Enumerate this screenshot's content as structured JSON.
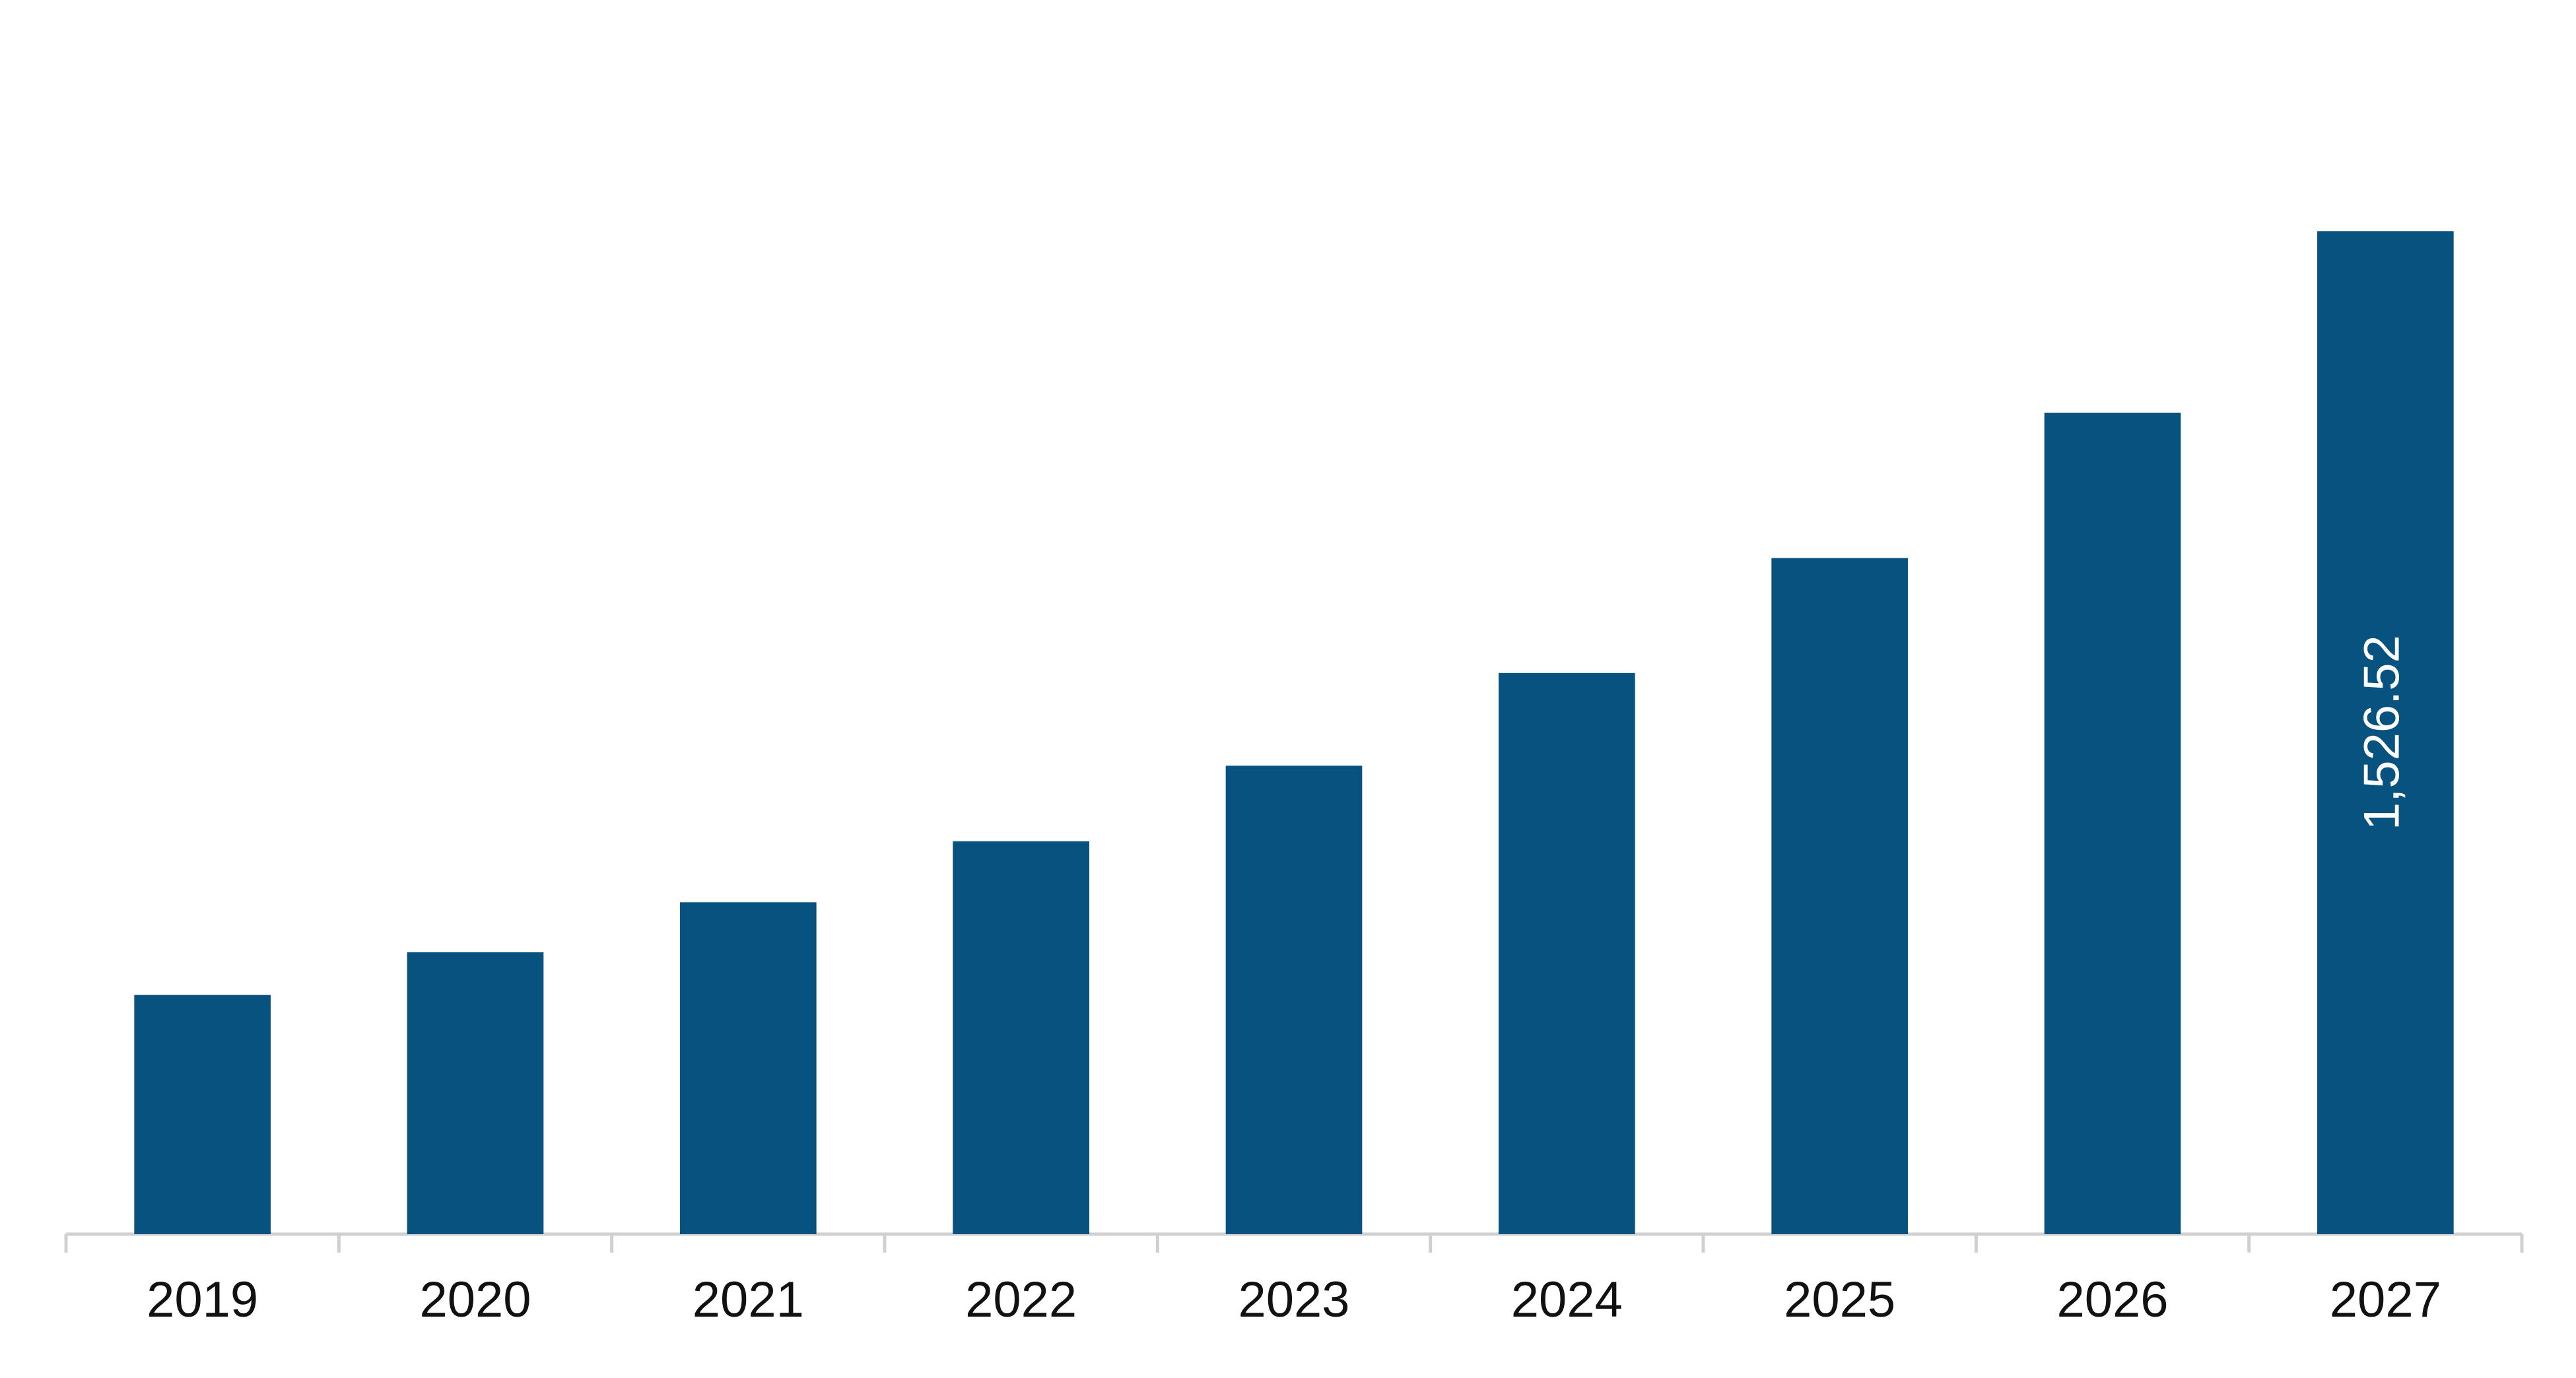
{
  "chart_data": {
    "type": "bar",
    "categories": [
      "2019",
      "2020",
      "2021",
      "2022",
      "2023",
      "2024",
      "2025",
      "2026",
      "2027"
    ],
    "values": [
      364,
      429,
      505,
      598,
      713,
      854,
      1029,
      1250,
      1526.52
    ],
    "value_labels": [
      null,
      null,
      null,
      null,
      null,
      null,
      null,
      null,
      "1,526.52"
    ],
    "color": "#08527f",
    "ylim": [
      0,
      1800
    ]
  }
}
